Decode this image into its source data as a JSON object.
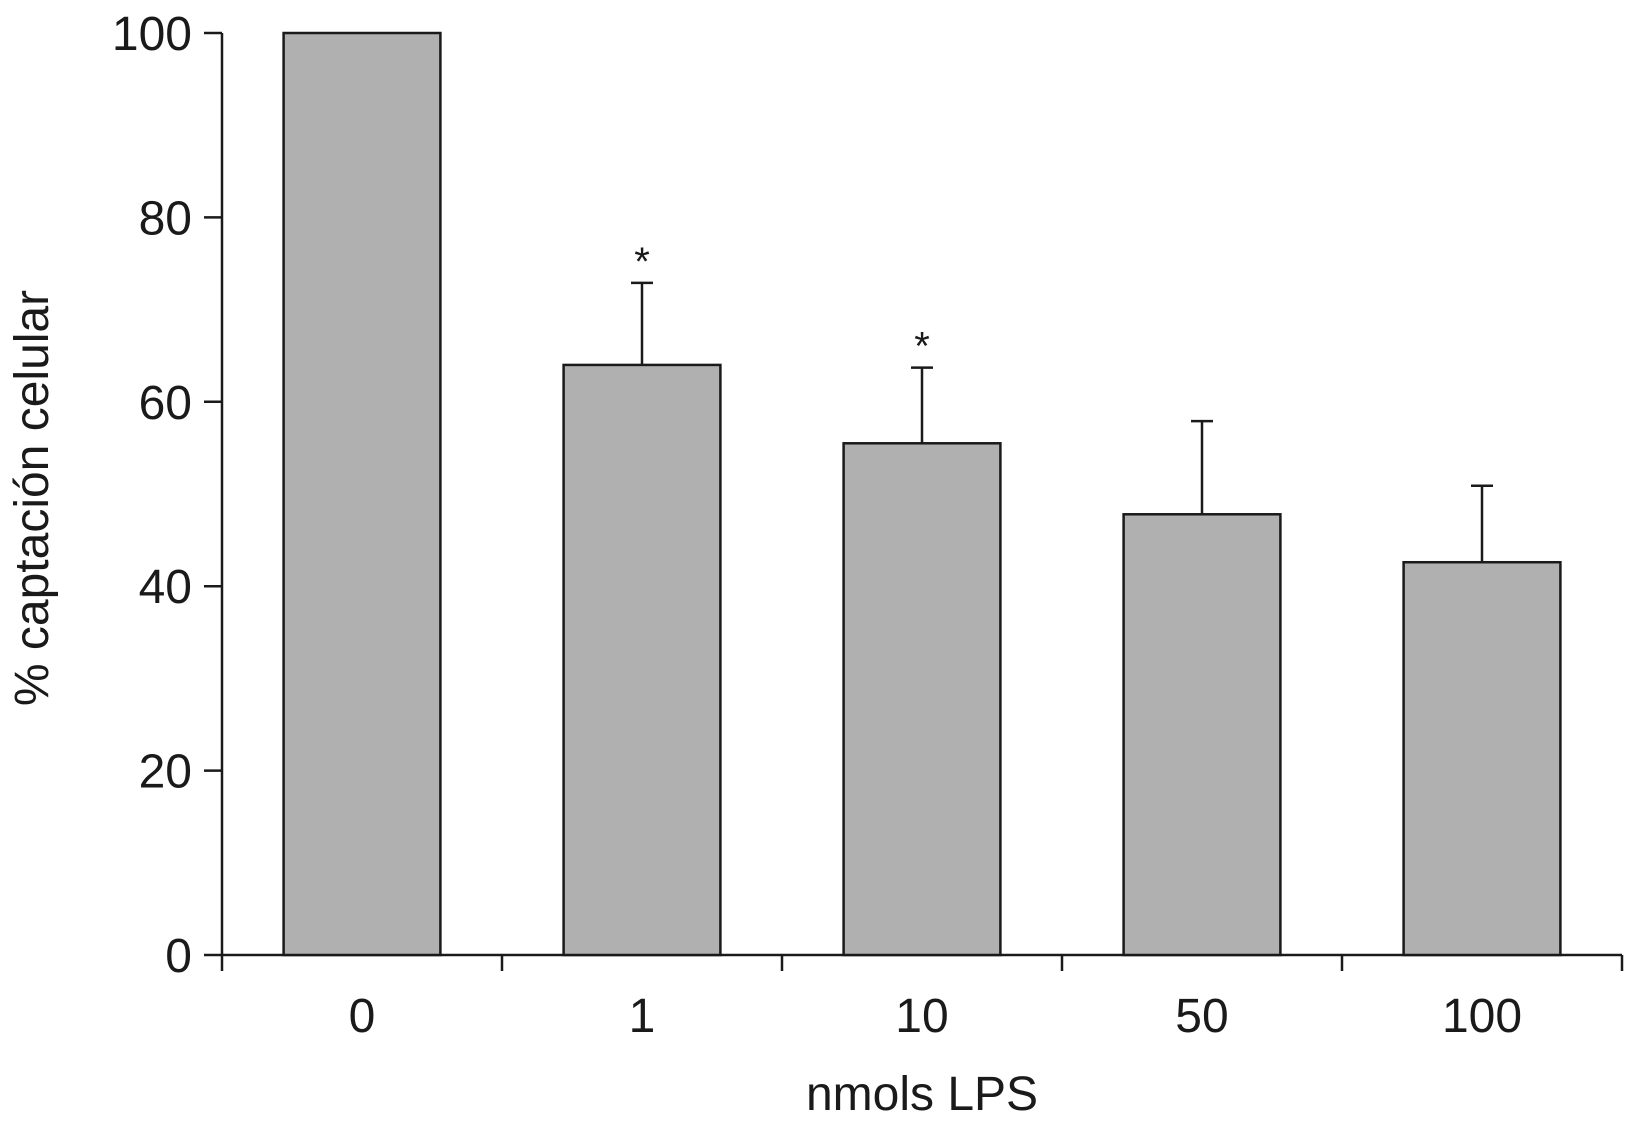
{
  "chart_data": {
    "type": "bar",
    "categories": [
      "0",
      "1",
      "10",
      "50",
      "100"
    ],
    "values": [
      100,
      64,
      55.5,
      47.8,
      42.6
    ],
    "errors": [
      0,
      8.9,
      8.2,
      10.1,
      8.3
    ],
    "significance": [
      "",
      "*",
      "*",
      "",
      ""
    ],
    "title": "",
    "xlabel": "nmols LPS",
    "ylabel": "% captación celular",
    "ylim": [
      0,
      100
    ],
    "yticks": [
      "0",
      "20",
      "40",
      "60",
      "80",
      "100"
    ],
    "grid": false,
    "legend": "none",
    "colors": {
      "bar": "#b0b0b0",
      "ink": "#1a1a1a"
    }
  }
}
